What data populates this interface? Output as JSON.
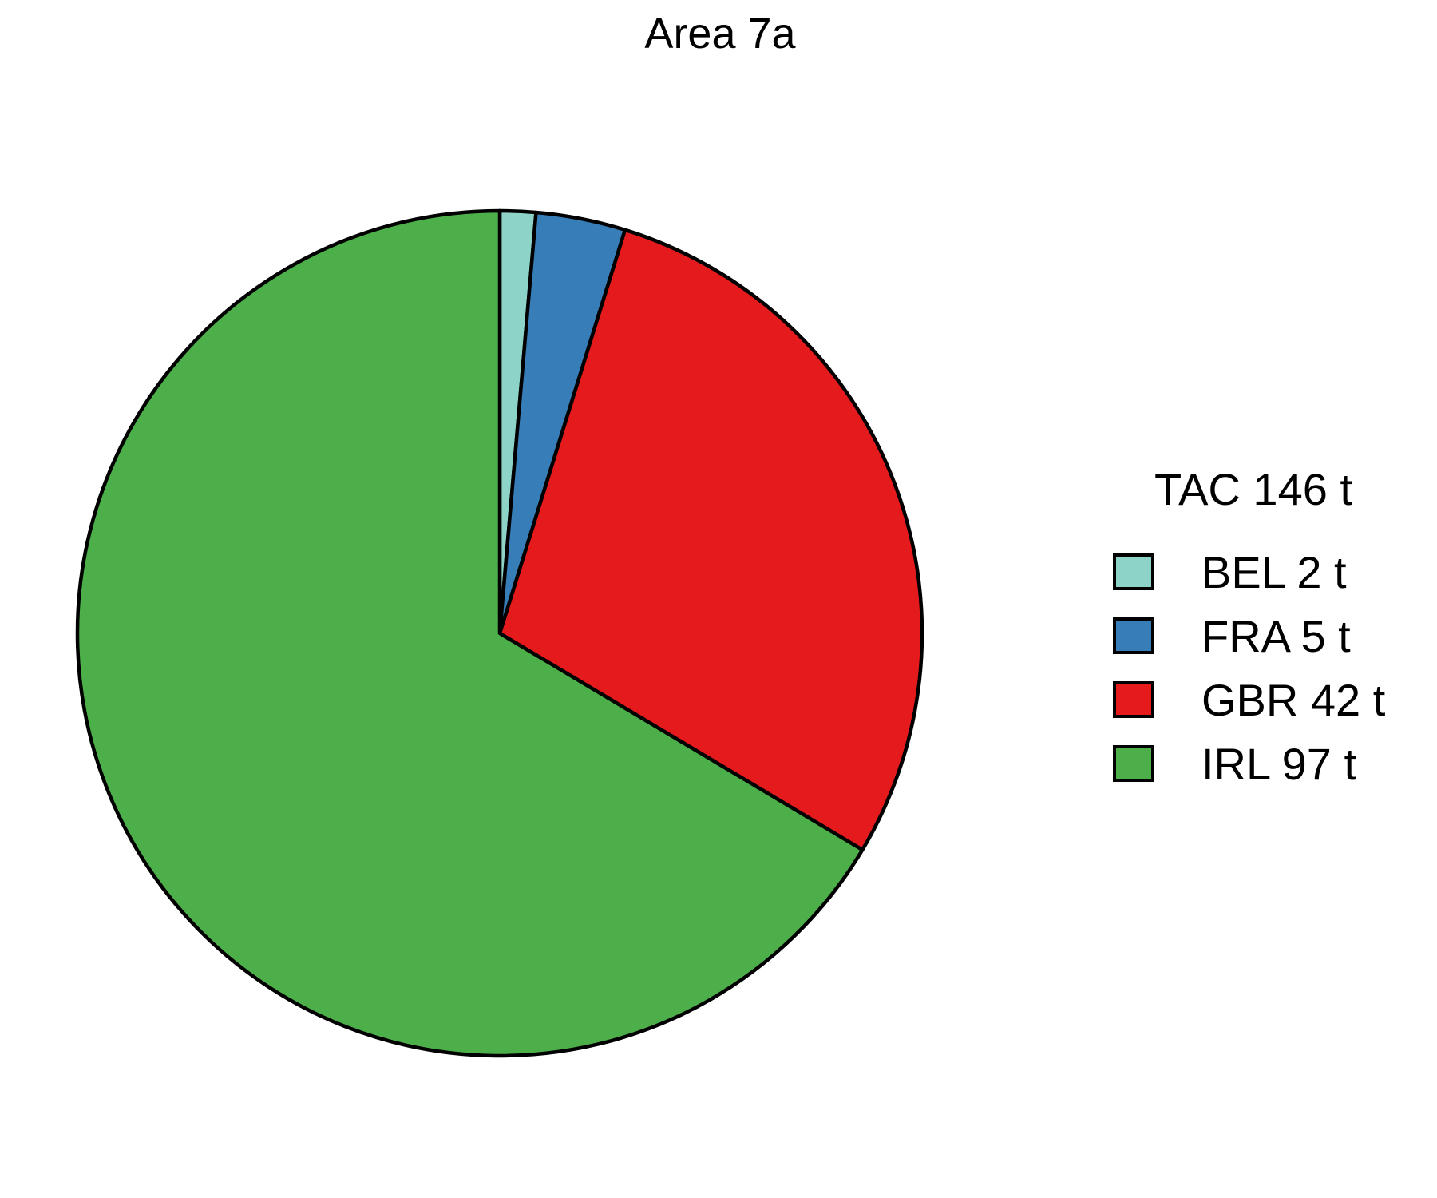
{
  "chart_data": {
    "type": "pie",
    "title": "Area 7a",
    "legend_title": "TAC 146 t",
    "legend_position": "right",
    "start": "top",
    "direction": "clockwise",
    "slices": [
      {
        "label": "BEL 2 t",
        "value": 2,
        "color": "#8DD3C7"
      },
      {
        "label": "FRA 5 t",
        "value": 5,
        "color": "#377EB8"
      },
      {
        "label": "GBR 42 t",
        "value": 42,
        "color": "#E41A1C"
      },
      {
        "label": "IRL 97 t",
        "value": 97,
        "color": "#4DAF4A"
      }
    ]
  }
}
